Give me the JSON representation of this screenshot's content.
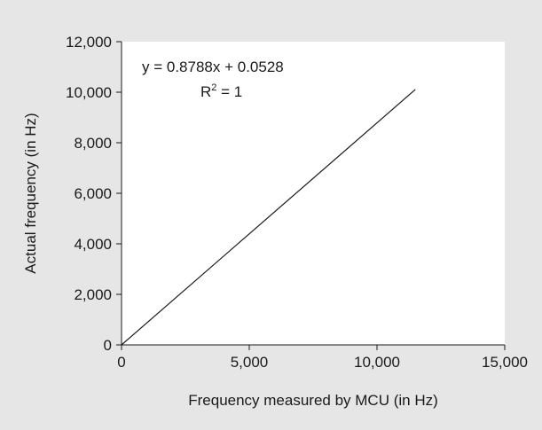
{
  "chart_data": {
    "type": "line",
    "title": "",
    "xlabel": "Frequency measured by MCU (in Hz)",
    "ylabel": "Actual frequency (in Hz)",
    "xlim": [
      0,
      15000
    ],
    "ylim": [
      0,
      12000
    ],
    "xticks": [
      0,
      5000,
      10000,
      15000
    ],
    "xtick_labels": [
      "0",
      "5,000",
      "10,000",
      "15,000"
    ],
    "yticks": [
      0,
      2000,
      4000,
      6000,
      8000,
      10000,
      12000
    ],
    "ytick_labels": [
      "0",
      "2,000",
      "4,000",
      "6,000",
      "8,000",
      "10,000",
      "12,000"
    ],
    "grid": false,
    "legend": "none",
    "series": [
      {
        "x": [
          0,
          11500
        ],
        "y": [
          0,
          10106
        ],
        "color": "#1a1a1a"
      }
    ],
    "annotations": {
      "equation": "y = 0.8788x + 0.0528",
      "r_squared_prefix": "R",
      "r_squared_exponent": "2",
      "r_squared_suffix": " = 1"
    },
    "colors": {
      "background": "#e6e6e7",
      "plot_area": "#ffffff",
      "axis": "#1a1a1a",
      "line": "#1a1a1a"
    }
  }
}
